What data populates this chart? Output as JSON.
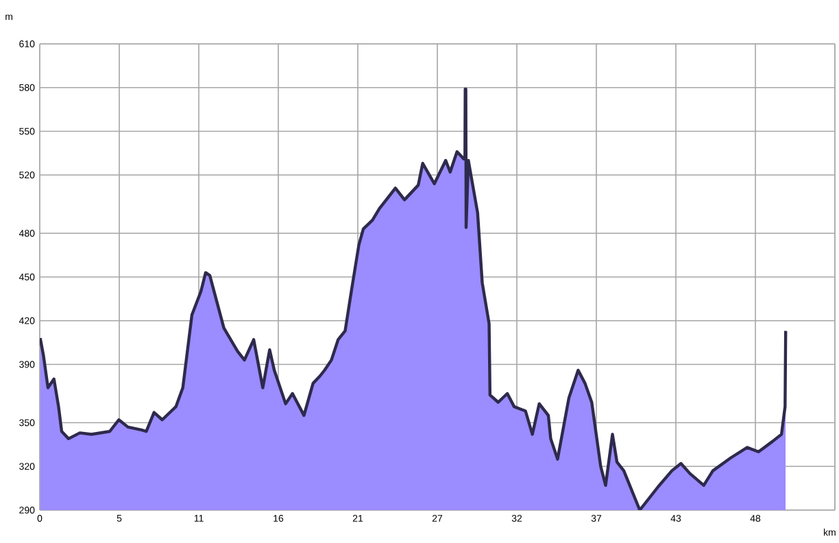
{
  "chart_data": {
    "type": "area",
    "xlabel": "km",
    "ylabel": "m",
    "xlim": [
      0,
      53.3
    ],
    "ylim": [
      290,
      610
    ],
    "xticks": [
      {
        "value": 0,
        "label": "0"
      },
      {
        "value": 5.33,
        "label": "5"
      },
      {
        "value": 10.66,
        "label": "11"
      },
      {
        "value": 15.99,
        "label": "16"
      },
      {
        "value": 21.32,
        "label": "21"
      },
      {
        "value": 26.65,
        "label": "27"
      },
      {
        "value": 31.98,
        "label": "32"
      },
      {
        "value": 37.31,
        "label": "37"
      },
      {
        "value": 42.64,
        "label": "43"
      },
      {
        "value": 47.97,
        "label": "48"
      },
      {
        "value": 53.3,
        "label": null
      }
    ],
    "yticks": [
      290,
      320,
      350,
      390,
      420,
      450,
      480,
      520,
      550,
      580,
      610
    ],
    "grid": true,
    "series": [
      {
        "color": "#9b8cff",
        "x": [
          0.03,
          0.25,
          0.55,
          0.95,
          1.26,
          1.47,
          1.93,
          2.69,
          3.46,
          4.69,
          5.3,
          5.91,
          6.83,
          7.14,
          7.66,
          8.21,
          9.13,
          9.59,
          10.2,
          10.8,
          11.12,
          11.4,
          12.34,
          13.26,
          13.72,
          14.34,
          14.95,
          15.41,
          15.72,
          16.48,
          16.94,
          17.71,
          18.32,
          18.78,
          19.09,
          19.55,
          20.0,
          20.47,
          20.93,
          21.39,
          21.69,
          22.3,
          22.77,
          23.23,
          23.84,
          24.45,
          25.37,
          25.67,
          26.45,
          27.21,
          27.51,
          27.97,
          28.43,
          28.5,
          28.52,
          28.56,
          28.58,
          28.73,
          29.35,
          29.66,
          30.12,
          30.18,
          30.73,
          31.34,
          31.8,
          32.56,
          33.02,
          33.48,
          34.09,
          34.25,
          34.71,
          35.47,
          36.09,
          36.55,
          37.0,
          37.6,
          37.93,
          38.39,
          38.69,
          39.15,
          40.22,
          41.45,
          42.37,
          42.98,
          43.59,
          44.51,
          45.12,
          46.34,
          47.42,
          48.18,
          49.1,
          49.72,
          49.96,
          50.0
        ],
        "values": [
          408,
          396,
          374,
          380,
          361,
          344,
          339,
          343,
          342,
          344,
          352,
          347,
          345,
          344,
          357,
          352,
          361,
          374,
          424,
          440,
          453,
          451,
          415,
          399,
          393,
          407,
          374,
          400,
          386,
          363,
          370,
          355,
          377,
          382,
          386,
          393,
          407,
          413,
          443,
          472,
          483,
          489,
          497,
          503,
          511,
          503,
          513,
          528,
          514,
          530,
          522,
          536,
          531,
          531,
          579,
          579,
          484,
          530,
          494,
          446,
          418,
          369,
          364,
          370,
          361,
          358,
          342,
          363,
          355,
          339,
          325,
          367,
          386,
          377,
          364,
          320,
          307,
          342,
          323,
          317,
          290,
          306,
          317,
          322,
          315,
          307,
          317,
          326,
          333,
          330,
          337,
          342,
          361,
          413
        ]
      }
    ]
  }
}
